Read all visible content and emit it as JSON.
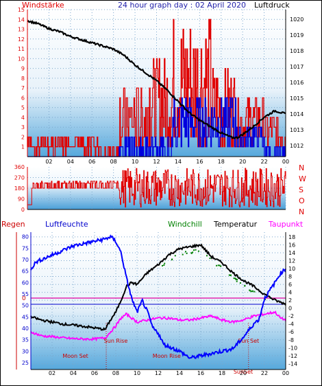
{
  "header": {
    "left_label": "Windstärke",
    "title": "24 hour graph day : 02 April 2020",
    "right_label": "Luftdruck"
  },
  "header2": {
    "regen": "Regen",
    "luftfeuchte": "Luftfeuchte",
    "windchill": "Windchill",
    "temperatur": "Temperatur",
    "taupunkt": "Taupunkt"
  },
  "colors": {
    "wind": "#e00000",
    "gust": "#0000dd",
    "pressure": "#000000",
    "humidity": "#0000ff",
    "temperature": "#000000",
    "windchill": "#008000",
    "dewpoint": "#ff00ff",
    "rain_axis": "#cc0000",
    "bg_top": "#ffffff",
    "bg_bottom": "#56a8dc"
  },
  "chart_data": [
    {
      "type": "line",
      "name": "wind-pressure",
      "x_ticks": [
        "02",
        "04",
        "06",
        "08",
        "10",
        "12",
        "14",
        "16",
        "18",
        "20",
        "22",
        "00"
      ],
      "y_left_ticks": [
        "1",
        "2",
        "3",
        "4",
        "5",
        "6",
        "7",
        "8",
        "9",
        "10",
        "11",
        "12",
        "13",
        "14",
        "15"
      ],
      "y_right_ticks": [
        "1012",
        "1013",
        "1014",
        "1015",
        "1016",
        "1017",
        "1018",
        "1019",
        "1020"
      ],
      "ylim_left": [
        0,
        15
      ],
      "ylim_right": [
        1011.3,
        1020.6
      ],
      "pressure": {
        "x": [
          0,
          1,
          2,
          3,
          4,
          5,
          6,
          7,
          8,
          9,
          10,
          11,
          12,
          13,
          14,
          15,
          16,
          17,
          18,
          19,
          19.5,
          20,
          21,
          22,
          23,
          24
        ],
        "y": [
          1019.9,
          1019.7,
          1019.4,
          1019.2,
          1018.9,
          1018.7,
          1018.5,
          1018.3,
          1018.1,
          1017.7,
          1017.1,
          1016.6,
          1016.1,
          1015.5,
          1014.8,
          1014.1,
          1013.6,
          1013.2,
          1012.8,
          1012.5,
          1012.5,
          1012.7,
          1013.2,
          1013.8,
          1014.2,
          1014.0
        ]
      },
      "wind_note": "Windstärke (red) and gust (blue) rapid fluctuations"
    },
    {
      "type": "line",
      "name": "wind-direction",
      "y_left_ticks": [
        "0",
        "90",
        "180",
        "270",
        "360"
      ],
      "y_right_labels": [
        "N",
        "W",
        "S",
        "O",
        "N"
      ],
      "ylim": [
        0,
        360
      ]
    },
    {
      "type": "line",
      "name": "temp-humidity",
      "x_ticks": [
        "02",
        "04",
        "06",
        "08",
        "10",
        "12",
        "14",
        "16",
        "18",
        "20",
        "22",
        "00"
      ],
      "y_left_ticks": [
        "25",
        "30",
        "35",
        "40",
        "45",
        "50",
        "55",
        "60",
        "65",
        "70",
        "75",
        "80"
      ],
      "y_right_ticks": [
        "18",
        "16",
        "14",
        "12",
        "10",
        "8",
        "6",
        "4",
        "2",
        "0",
        "-2",
        "-4",
        "-6",
        "-8",
        "-10",
        "-12",
        "-14"
      ],
      "rain_zero_label": "0",
      "ylim_left": [
        22,
        82
      ],
      "ylim_right": [
        -15.5,
        19.2
      ],
      "humidity": {
        "x": [
          0,
          0.5,
          1,
          2,
          3,
          4,
          5,
          6,
          7,
          7.5,
          8,
          8.5,
          9,
          9.5,
          10,
          10.5,
          11,
          11.5,
          12,
          12.5,
          13,
          14,
          15,
          16,
          17,
          18,
          19,
          20,
          21,
          21.5,
          22,
          23,
          23.5,
          24
        ],
        "y": [
          66,
          69,
          70,
          72,
          74,
          76,
          77,
          78,
          79,
          80,
          78,
          73,
          62,
          53,
          47,
          52,
          47,
          40,
          38,
          33,
          32,
          30,
          27,
          28,
          29,
          30,
          31,
          36,
          42,
          44,
          53,
          60,
          64,
          66
        ]
      },
      "temperature": {
        "x": [
          0,
          1,
          2,
          3,
          4,
          5,
          6,
          7,
          7.5,
          8,
          8.5,
          9,
          9.5,
          10,
          10.5,
          11,
          12,
          13,
          14,
          15,
          16,
          17,
          18,
          19,
          20,
          21,
          22,
          23,
          24
        ],
        "y": [
          -2.2,
          -3.0,
          -3.5,
          -4.0,
          -4.3,
          -4.6,
          -5.0,
          -5.4,
          -3.0,
          -1.0,
          2.0,
          5.5,
          6.5,
          6.0,
          7.5,
          9.0,
          11.0,
          13.5,
          15.0,
          15.5,
          16.0,
          13.0,
          11.5,
          9.0,
          7.0,
          5.5,
          3.5,
          2.0,
          1.0
        ]
      },
      "dewpoint": {
        "x": [
          0,
          0.5,
          1,
          2,
          3,
          4,
          5,
          6,
          7,
          7.5,
          8,
          8.5,
          9,
          9.5,
          10,
          11,
          12,
          13,
          14,
          15,
          16,
          17,
          18,
          19,
          20,
          21,
          22,
          23,
          23.5,
          24
        ],
        "y": [
          -6.0,
          -6.5,
          -7.0,
          -7.2,
          -7.5,
          -7.7,
          -7.8,
          -7.8,
          -7.5,
          -6.0,
          -4.5,
          -2.5,
          -1.5,
          -2.5,
          -3.5,
          -3.0,
          -2.5,
          -2.5,
          -3.0,
          -3.0,
          -2.5,
          -2.0,
          -3.0,
          -3.5,
          -3.0,
          -2.0,
          -1.5,
          -1.0,
          -2.5,
          -3.0
        ]
      },
      "annotations": {
        "sun_rise": "Sun Rise",
        "sun_set": "Sun Set",
        "moon_set": "Moon Set",
        "moon_rise": "Moon Rise",
        "sun_set_bottom": "SunSet"
      }
    }
  ]
}
